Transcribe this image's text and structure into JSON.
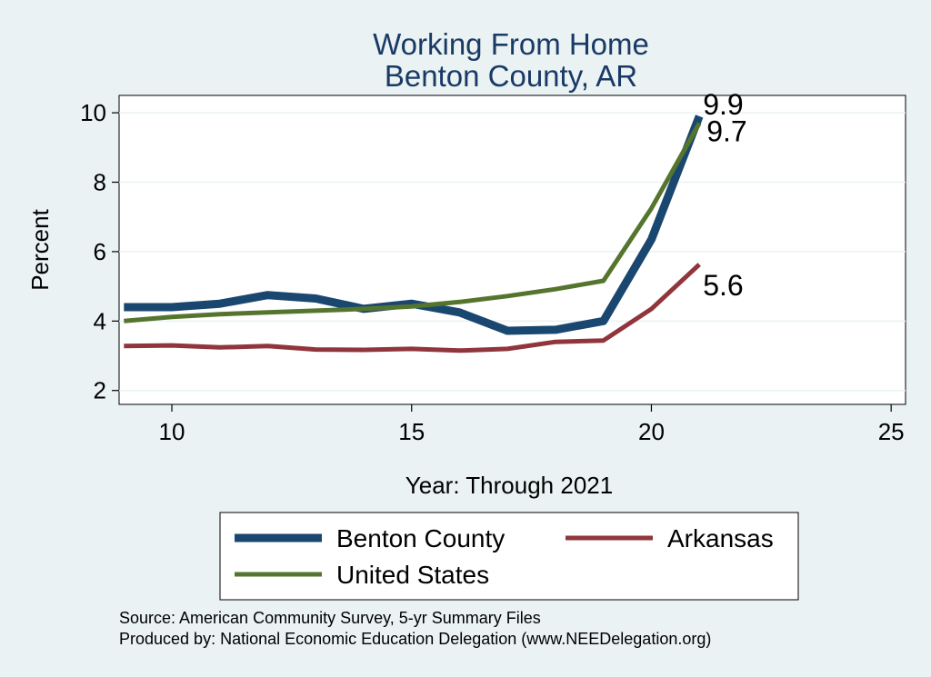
{
  "chart_data": {
    "type": "line",
    "title": "Working From Home",
    "subtitle": "Benton County, AR",
    "xlabel": "Year: Through 2021",
    "ylabel": "Percent",
    "xlim": [
      8.9,
      25.3
    ],
    "ylim": [
      1.6,
      10.5
    ],
    "xticks": [
      10,
      15,
      20,
      25
    ],
    "yticks": [
      2,
      4,
      6,
      8,
      10
    ],
    "grid": true,
    "legend_position": "bottom",
    "x": [
      9,
      10,
      11,
      12,
      13,
      14,
      15,
      16,
      17,
      18,
      19,
      20,
      21
    ],
    "series": [
      {
        "name": "Benton County",
        "color": "#1a476f",
        "values": [
          4.4,
          4.4,
          4.5,
          4.75,
          4.65,
          4.35,
          4.5,
          4.25,
          3.72,
          3.75,
          4.0,
          6.35,
          9.9
        ],
        "end_label": "9.9"
      },
      {
        "name": "Arkansas",
        "color": "#90353b",
        "values": [
          3.28,
          3.3,
          3.24,
          3.28,
          3.18,
          3.17,
          3.2,
          3.15,
          3.2,
          3.4,
          3.44,
          4.35,
          5.63
        ],
        "end_label": "5.6"
      },
      {
        "name": "United States",
        "color": "#55752f",
        "values": [
          4.0,
          4.12,
          4.2,
          4.25,
          4.3,
          4.35,
          4.42,
          4.55,
          4.72,
          4.92,
          5.16,
          7.25,
          9.7
        ],
        "end_label": "9.7"
      }
    ],
    "notes": [
      "Source: American Community Survey, 5-yr Summary Files",
      "Produced by: National Economic Education Delegation (www.NEEDelegation.org)"
    ]
  }
}
